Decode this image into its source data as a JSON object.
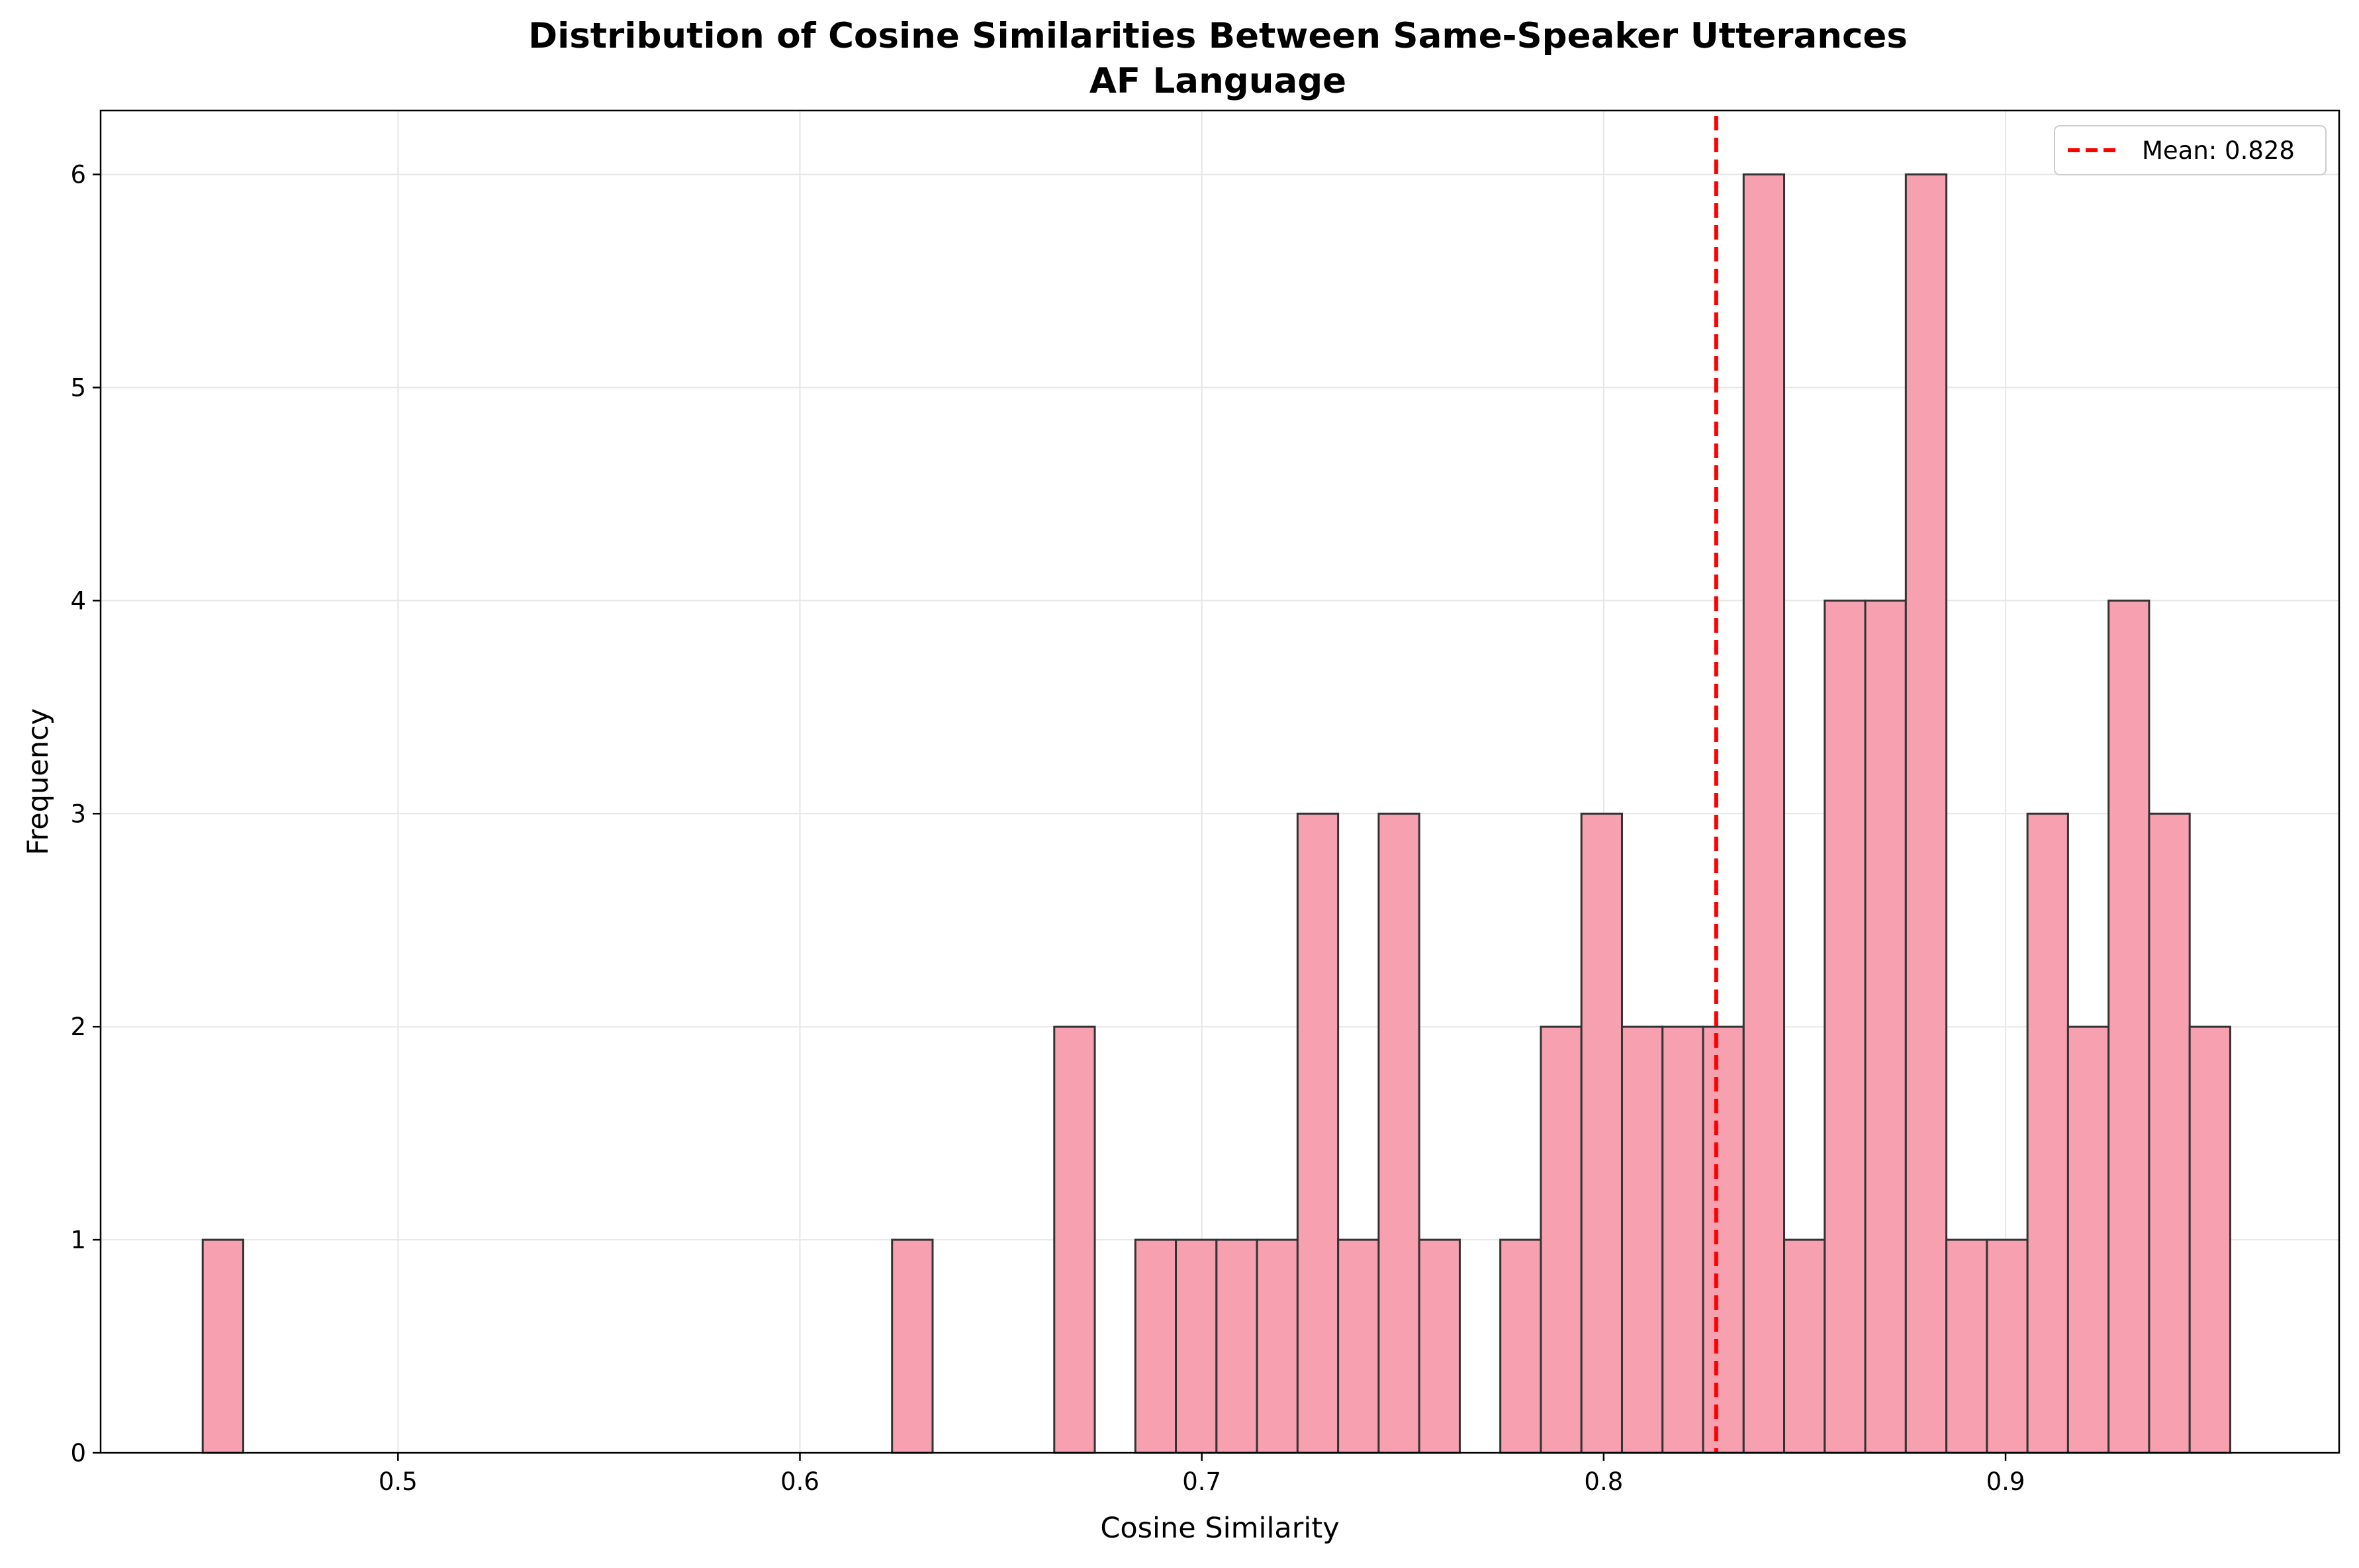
{
  "chart_data": {
    "type": "bar",
    "title": "Distribution of Cosine Similarities Between Same-Speaker Utterances",
    "subtitle": "AF Language",
    "xlabel": "Cosine Similarity",
    "ylabel": "Frequency",
    "xlim": [
      0.426,
      0.983
    ],
    "ylim": [
      0,
      6.3
    ],
    "xticks": [
      0.5,
      0.6,
      0.7,
      0.8,
      0.9
    ],
    "xtick_labels": [
      "0.5",
      "0.6",
      "0.7",
      "0.8",
      "0.9"
    ],
    "yticks": [
      0,
      1,
      2,
      3,
      4,
      5,
      6
    ],
    "ytick_labels": [
      "0",
      "1",
      "2",
      "3",
      "4",
      "5",
      "6"
    ],
    "grid": true,
    "bin_start": 0.4514,
    "bin_width": 0.01009,
    "counts": [
      1,
      0,
      0,
      0,
      0,
      0,
      0,
      0,
      0,
      0,
      0,
      0,
      0,
      0,
      0,
      0,
      0,
      1,
      0,
      0,
      0,
      2,
      0,
      1,
      1,
      1,
      1,
      3,
      1,
      3,
      1,
      0,
      1,
      2,
      3,
      2,
      2,
      2,
      6,
      1,
      4,
      4,
      6,
      1,
      1,
      3,
      2,
      4,
      3,
      2
    ],
    "bar_color": "#f7a1b0",
    "edge_color": "#333333",
    "mean_line": {
      "value": 0.828,
      "label": "Mean: 0.828",
      "color": "#ff0000",
      "style": "dashed"
    },
    "legend_position": "top-right"
  }
}
